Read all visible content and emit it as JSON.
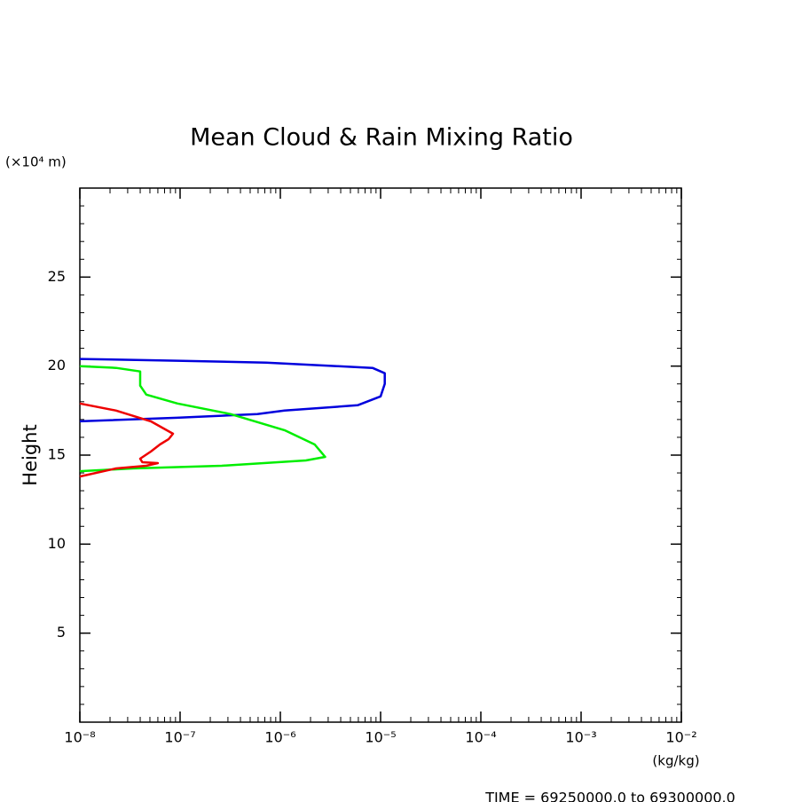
{
  "chart_data": {
    "type": "line",
    "title": "Mean Cloud & Rain Mixing Ratio",
    "y_unit": "(×10⁴ m)",
    "ylabel": "Height",
    "x_unit": "(kg/kg)",
    "footer": "TIME = 69250000.0 to 69300000.0",
    "xscale": "log",
    "xlim": [
      1e-08,
      0.01
    ],
    "xticks": [
      {
        "value": 1e-08,
        "label": "10⁻⁸"
      },
      {
        "value": 1e-07,
        "label": "10⁻⁷"
      },
      {
        "value": 1e-06,
        "label": "10⁻⁶"
      },
      {
        "value": 1e-05,
        "label": "10⁻⁵"
      },
      {
        "value": 0.0001,
        "label": "10⁻⁴"
      },
      {
        "value": 0.001,
        "label": "10⁻³"
      },
      {
        "value": 0.01,
        "label": "10⁻²"
      }
    ],
    "ylim": [
      0,
      30
    ],
    "yticks": [
      5,
      10,
      15,
      20,
      25
    ],
    "series": [
      {
        "color": "#0000dd",
        "x": [
          1e-08,
          9.4e-08,
          7.2e-07,
          3.7e-06,
          8.3e-06,
          1.1e-05,
          1.1e-05,
          1e-05,
          5.9e-06,
          1.1e-06,
          5.9e-07,
          9.3e-08,
          1e-08
        ],
        "y": [
          20.4,
          20.3,
          20.2,
          20.0,
          19.9,
          19.6,
          19.0,
          18.3,
          17.8,
          17.5,
          17.3,
          17.1,
          16.9
        ]
      },
      {
        "color": "#00ee00",
        "x": [
          1e-08,
          2.3e-08,
          4e-08,
          4e-08,
          4.6e-08,
          9.4e-08,
          3.2e-07,
          1.1e-06,
          2.2e-06,
          2.8e-06,
          1.8e-06,
          2.6e-07,
          3.4e-08,
          1e-08
        ],
        "y": [
          20.0,
          19.9,
          19.7,
          18.9,
          18.4,
          17.9,
          17.3,
          16.4,
          15.6,
          14.9,
          14.7,
          14.4,
          14.25,
          14.1
        ]
      },
      {
        "color": "#ee0000",
        "x": [
          1e-08,
          2.3e-08,
          5.1e-08,
          8.5e-08,
          7.7e-08,
          6.3e-08,
          5.1e-08,
          4e-08,
          4.2e-08,
          6e-08,
          4.6e-08,
          2.3e-08,
          1e-08
        ],
        "y": [
          17.9,
          17.5,
          16.9,
          16.2,
          15.9,
          15.6,
          15.2,
          14.8,
          14.6,
          14.55,
          14.4,
          14.25,
          13.8
        ]
      }
    ]
  }
}
